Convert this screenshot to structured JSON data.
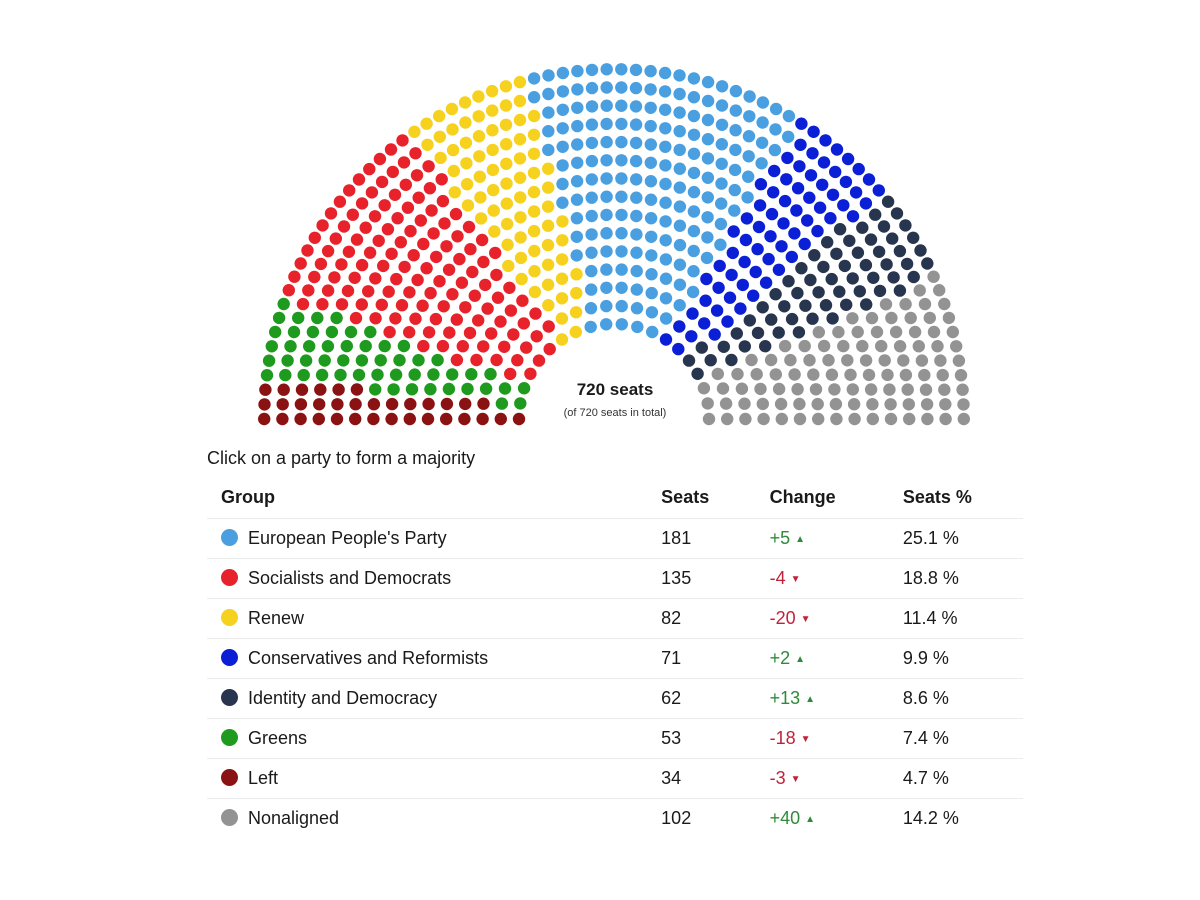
{
  "chart_data": {
    "type": "parliament",
    "total_label": "720 seats",
    "total_sub": "(of 720 seats in total)",
    "total_seats": 720,
    "instruction": "Click on a party to form a majority",
    "columns": {
      "group": "Group",
      "seats": "Seats",
      "change": "Change",
      "pct": "Seats %"
    },
    "parties": [
      {
        "name": "European People's Party",
        "seats": "181",
        "change": "+5",
        "direction": "up",
        "pct": "25.1 %",
        "color": "#4a9fe0"
      },
      {
        "name": "Socialists and Democrats",
        "seats": "135",
        "change": "-4",
        "direction": "down",
        "pct": "18.8 %",
        "color": "#e8222b"
      },
      {
        "name": "Renew",
        "seats": "82",
        "change": "-20",
        "direction": "down",
        "pct": "11.4 %",
        "color": "#f6d11e"
      },
      {
        "name": "Conservatives and Reformists",
        "seats": "71",
        "change": "+2",
        "direction": "up",
        "pct": "9.9 %",
        "color": "#0a1fd6"
      },
      {
        "name": "Identity and Democracy",
        "seats": "62",
        "change": "+13",
        "direction": "up",
        "pct": "8.6 %",
        "color": "#28354f"
      },
      {
        "name": "Greens",
        "seats": "53",
        "change": "-18",
        "direction": "down",
        "pct": "7.4 %",
        "color": "#1e9a1e"
      },
      {
        "name": "Left",
        "seats": "34",
        "change": "-3",
        "direction": "down",
        "pct": "4.7 %",
        "color": "#8b1212"
      },
      {
        "name": "Nonaligned",
        "seats": "102",
        "change": "+40",
        "direction": "up",
        "pct": "14.2 %",
        "color": "#939393"
      }
    ],
    "hemicycle_order": [
      "Left",
      "Greens",
      "Socialists and Democrats",
      "Renew",
      "European People's Party",
      "Conservatives and Reformists",
      "Identity and Democracy",
      "Nonaligned"
    ]
  }
}
